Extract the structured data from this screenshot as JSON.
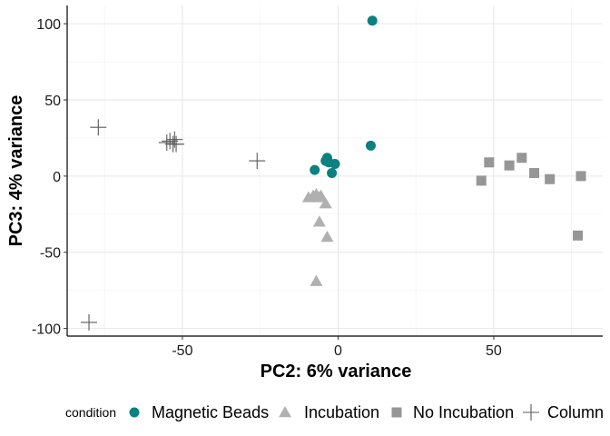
{
  "chart_data": {
    "type": "scatter",
    "xlabel": "PC2: 6% variance",
    "ylabel": "PC3: 4% variance",
    "xlim": [
      -87,
      85
    ],
    "ylim": [
      -105,
      112
    ],
    "x_ticks": [
      -50,
      0,
      50
    ],
    "y_ticks": [
      -100,
      -50,
      0,
      50,
      100
    ],
    "grid": true,
    "legend": {
      "title": "condition",
      "position": "bottom"
    },
    "series": [
      {
        "name": "Magnetic Beads",
        "marker": "circle",
        "color": "#0d8080",
        "points": [
          [
            11,
            102
          ],
          [
            10.5,
            20
          ],
          [
            -3.5,
            12
          ],
          [
            -4,
            10
          ],
          [
            -3,
            9
          ],
          [
            -1,
            8
          ],
          [
            -7.5,
            4
          ],
          [
            -2,
            2
          ]
        ]
      },
      {
        "name": "Incubation",
        "marker": "triangle",
        "color": "#b0b0b0",
        "points": [
          [
            -9.5,
            -14
          ],
          [
            -8,
            -13
          ],
          [
            -7,
            -12
          ],
          [
            -6,
            -14
          ],
          [
            -5.5,
            -13
          ],
          [
            -4,
            -18
          ],
          [
            -6,
            -30
          ],
          [
            -3.5,
            -40
          ],
          [
            -7,
            -69
          ]
        ]
      },
      {
        "name": "No Incubation",
        "marker": "square",
        "color": "#969696",
        "points": [
          [
            46,
            -3
          ],
          [
            48.5,
            9
          ],
          [
            55,
            7
          ],
          [
            59,
            12
          ],
          [
            63,
            2
          ],
          [
            68,
            -2
          ],
          [
            78,
            0
          ],
          [
            77,
            -39
          ]
        ]
      },
      {
        "name": "Column",
        "marker": "plus",
        "color": "#5a5a5a",
        "points": [
          [
            -77,
            32
          ],
          [
            -55,
            22
          ],
          [
            -54,
            23
          ],
          [
            -53,
            21
          ],
          [
            -52.5,
            24
          ],
          [
            -52,
            21
          ],
          [
            -26,
            10
          ],
          [
            -80,
            -96
          ]
        ]
      }
    ]
  }
}
